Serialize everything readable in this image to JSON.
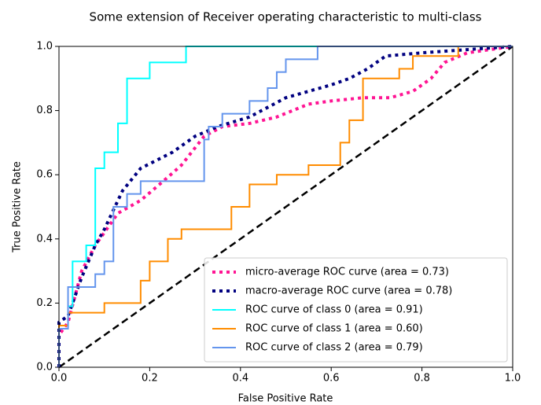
{
  "chart_data": {
    "type": "line",
    "title": "Some extension of Receiver operating characteristic to multi-class",
    "xlabel": "False Positive Rate",
    "ylabel": "True Positive Rate",
    "xlim": [
      0,
      1
    ],
    "ylim": [
      0,
      1
    ],
    "xticks": [
      {
        "value": 0,
        "label": "0.0"
      },
      0.2,
      0.4,
      0.6,
      0.8,
      {
        "value": 1,
        "label": "1.0"
      }
    ],
    "yticks": [
      {
        "value": 0,
        "label": "0.0"
      },
      0.2,
      0.4,
      0.6,
      0.8,
      {
        "value": 1,
        "label": "1.0"
      }
    ],
    "legend": "lower right",
    "series": [
      {
        "name": "micro-average ROC curve (area = 0.73)",
        "color": "#ff1493",
        "style": "dotted",
        "x": [
          0,
          0,
          0.02,
          0.05,
          0.08,
          0.1,
          0.13,
          0.18,
          0.23,
          0.27,
          0.32,
          0.36,
          0.42,
          0.48,
          0.55,
          0.6,
          0.67,
          0.73,
          0.78,
          0.82,
          0.85,
          0.9,
          1
        ],
        "values": [
          0,
          0.1,
          0.14,
          0.3,
          0.38,
          0.42,
          0.48,
          0.52,
          0.58,
          0.63,
          0.72,
          0.75,
          0.76,
          0.78,
          0.82,
          0.83,
          0.84,
          0.84,
          0.86,
          0.9,
          0.95,
          0.98,
          1
        ]
      },
      {
        "name": "macro-average ROC curve (area = 0.78)",
        "color": "#000080",
        "style": "dotted",
        "x": [
          0,
          0,
          0.02,
          0.05,
          0.08,
          0.1,
          0.14,
          0.18,
          0.25,
          0.3,
          0.35,
          0.42,
          0.5,
          0.6,
          0.64,
          0.68,
          0.72,
          0.8,
          0.9,
          1
        ],
        "values": [
          0,
          0.14,
          0.16,
          0.28,
          0.38,
          0.43,
          0.55,
          0.62,
          0.67,
          0.72,
          0.75,
          0.78,
          0.84,
          0.88,
          0.9,
          0.93,
          0.97,
          0.98,
          0.99,
          1
        ]
      },
      {
        "name": "ROC curve of class 0 (area = 0.91)",
        "color": "#00ffff",
        "style": "solid",
        "x": [
          0,
          0,
          0.02,
          0.02,
          0.03,
          0.03,
          0.06,
          0.06,
          0.08,
          0.08,
          0.1,
          0.1,
          0.13,
          0.13,
          0.15,
          0.15,
          0.2,
          0.2,
          0.28,
          0.28,
          1
        ],
        "values": [
          0,
          0.13,
          0.13,
          0.19,
          0.19,
          0.33,
          0.33,
          0.38,
          0.38,
          0.62,
          0.62,
          0.67,
          0.67,
          0.76,
          0.76,
          0.9,
          0.9,
          0.95,
          0.95,
          1,
          1
        ]
      },
      {
        "name": "ROC curve of class 1 (area = 0.60)",
        "color": "#ff8c00",
        "style": "solid",
        "x": [
          0,
          0,
          0.02,
          0.02,
          0.1,
          0.1,
          0.18,
          0.18,
          0.2,
          0.2,
          0.24,
          0.24,
          0.27,
          0.27,
          0.38,
          0.38,
          0.42,
          0.42,
          0.48,
          0.48,
          0.55,
          0.55,
          0.62,
          0.62,
          0.64,
          0.64,
          0.67,
          0.67,
          0.75,
          0.75,
          0.78,
          0.78,
          0.88,
          0.88,
          1
        ],
        "values": [
          0,
          0.13,
          0.13,
          0.17,
          0.17,
          0.2,
          0.2,
          0.27,
          0.27,
          0.33,
          0.33,
          0.4,
          0.4,
          0.43,
          0.43,
          0.5,
          0.5,
          0.57,
          0.57,
          0.6,
          0.6,
          0.63,
          0.63,
          0.7,
          0.7,
          0.77,
          0.77,
          0.9,
          0.9,
          0.93,
          0.93,
          0.97,
          0.97,
          1,
          1
        ]
      },
      {
        "name": "ROC curve of class 2 (area = 0.79)",
        "color": "#6495ed",
        "style": "solid",
        "x": [
          0,
          0,
          0.02,
          0.02,
          0.08,
          0.08,
          0.1,
          0.1,
          0.12,
          0.12,
          0.15,
          0.15,
          0.18,
          0.18,
          0.32,
          0.32,
          0.33,
          0.33,
          0.36,
          0.36,
          0.42,
          0.42,
          0.46,
          0.46,
          0.48,
          0.48,
          0.5,
          0.5,
          0.57,
          0.57,
          1
        ],
        "values": [
          0,
          0.12,
          0.12,
          0.25,
          0.25,
          0.29,
          0.29,
          0.33,
          0.33,
          0.5,
          0.5,
          0.54,
          0.54,
          0.58,
          0.58,
          0.71,
          0.71,
          0.75,
          0.75,
          0.79,
          0.79,
          0.83,
          0.83,
          0.87,
          0.87,
          0.92,
          0.92,
          0.96,
          0.96,
          1,
          1
        ]
      }
    ]
  }
}
